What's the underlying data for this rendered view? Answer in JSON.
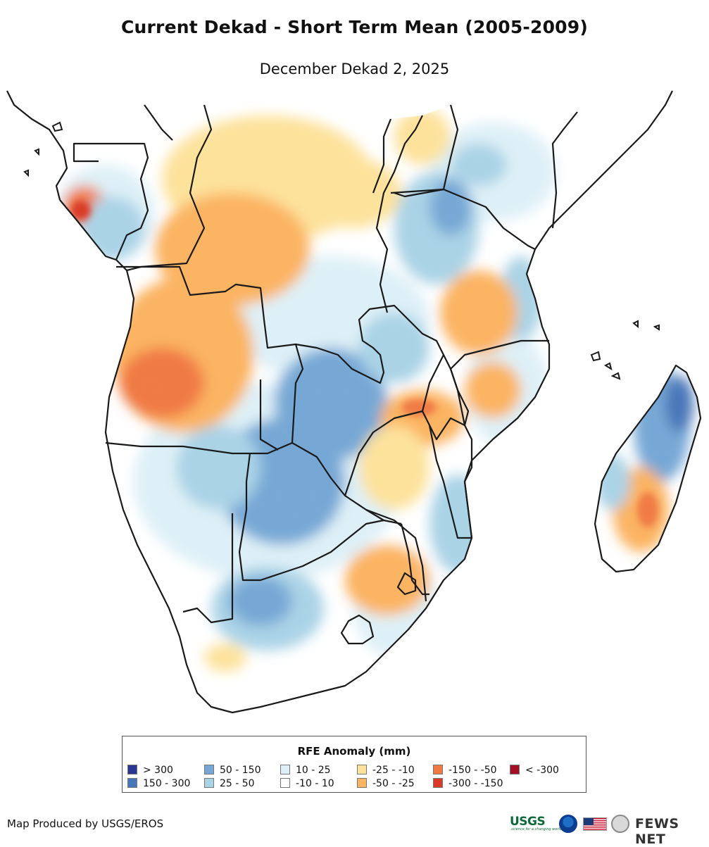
{
  "header": {
    "title": "Current Dekad - Short Term Mean (2005-2009)",
    "subtitle": "December Dekad 2, 2025"
  },
  "map": {
    "region": "Southern and Central Africa",
    "colors": {
      "land_background": "#ffffff",
      "border": "#1a1a1a",
      "ocean": "#ffffff"
    }
  },
  "legend": {
    "title": "RFE Anomaly (mm)",
    "items": [
      {
        "label": "> 300",
        "color": "#2b3592"
      },
      {
        "label": "150 - 300",
        "color": "#4876b8"
      },
      {
        "label": "50 - 150",
        "color": "#77a8d5"
      },
      {
        "label": "25 - 50",
        "color": "#aad3e6"
      },
      {
        "label": "10 - 25",
        "color": "#def0f7"
      },
      {
        "label": "-10 - 10",
        "color": "#ffffff"
      },
      {
        "label": "-25 - -10",
        "color": "#fde29b"
      },
      {
        "label": "-50 - -25",
        "color": "#fbb462"
      },
      {
        "label": "-150 - -50",
        "color": "#f07a44"
      },
      {
        "label": "-300 - -150",
        "color": "#d93a27"
      },
      {
        "label": "< -300",
        "color": "#a50f24"
      }
    ]
  },
  "footer": {
    "credit": "Map Produced by USGS/EROS",
    "logos": {
      "usgs": "USGS",
      "usgs_tagline": "science for a changing world",
      "noaa": "noaa-logo-icon",
      "flag": "us-flag-icon",
      "seal": "state-department-seal-icon",
      "fews": "FEWS NET"
    }
  }
}
